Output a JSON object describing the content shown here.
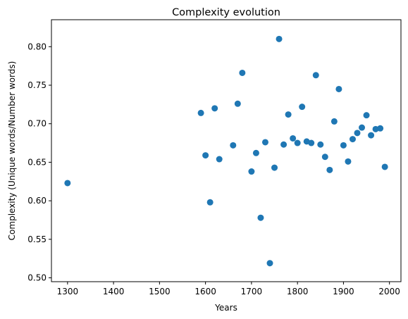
{
  "chart_data": {
    "type": "scatter",
    "title": "Complexity evolution",
    "xlabel": "Years",
    "ylabel": "Complexity (Unique words/Number words)",
    "xlim": [
      1265,
      2025
    ],
    "ylim": [
      0.495,
      0.835
    ],
    "xticks": [
      1300,
      1400,
      1500,
      1600,
      1700,
      1800,
      1900,
      2000
    ],
    "yticks": [
      0.5,
      0.55,
      0.6,
      0.65,
      0.7,
      0.75,
      0.8
    ],
    "grid": false,
    "color": "#1f77b4",
    "points": [
      {
        "x": 1300,
        "y": 0.623
      },
      {
        "x": 1590,
        "y": 0.714
      },
      {
        "x": 1600,
        "y": 0.659
      },
      {
        "x": 1610,
        "y": 0.598
      },
      {
        "x": 1620,
        "y": 0.72
      },
      {
        "x": 1630,
        "y": 0.654
      },
      {
        "x": 1660,
        "y": 0.672
      },
      {
        "x": 1670,
        "y": 0.726
      },
      {
        "x": 1680,
        "y": 0.766
      },
      {
        "x": 1700,
        "y": 0.638
      },
      {
        "x": 1710,
        "y": 0.662
      },
      {
        "x": 1720,
        "y": 0.578
      },
      {
        "x": 1730,
        "y": 0.676
      },
      {
        "x": 1740,
        "y": 0.519
      },
      {
        "x": 1750,
        "y": 0.643
      },
      {
        "x": 1760,
        "y": 0.81
      },
      {
        "x": 1770,
        "y": 0.673
      },
      {
        "x": 1780,
        "y": 0.712
      },
      {
        "x": 1790,
        "y": 0.681
      },
      {
        "x": 1800,
        "y": 0.675
      },
      {
        "x": 1810,
        "y": 0.722
      },
      {
        "x": 1820,
        "y": 0.677
      },
      {
        "x": 1830,
        "y": 0.675
      },
      {
        "x": 1840,
        "y": 0.763
      },
      {
        "x": 1850,
        "y": 0.673
      },
      {
        "x": 1860,
        "y": 0.657
      },
      {
        "x": 1870,
        "y": 0.64
      },
      {
        "x": 1880,
        "y": 0.703
      },
      {
        "x": 1890,
        "y": 0.745
      },
      {
        "x": 1900,
        "y": 0.672
      },
      {
        "x": 1910,
        "y": 0.651
      },
      {
        "x": 1920,
        "y": 0.68
      },
      {
        "x": 1930,
        "y": 0.688
      },
      {
        "x": 1940,
        "y": 0.695
      },
      {
        "x": 1950,
        "y": 0.711
      },
      {
        "x": 1960,
        "y": 0.685
      },
      {
        "x": 1970,
        "y": 0.693
      },
      {
        "x": 1980,
        "y": 0.694
      },
      {
        "x": 1990,
        "y": 0.644
      }
    ]
  }
}
